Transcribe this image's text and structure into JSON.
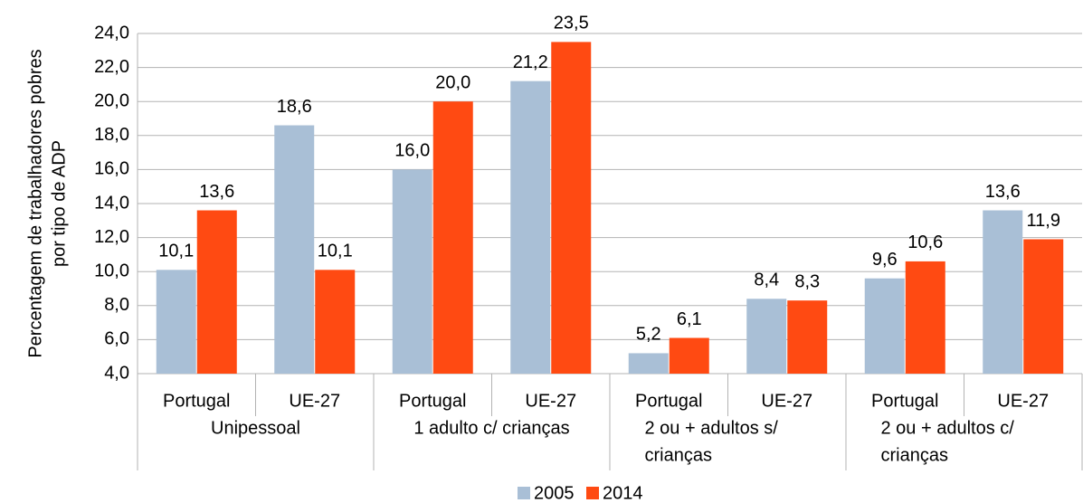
{
  "chart_data": {
    "type": "bar",
    "ylabel": [
      "Percentagem de trabalhadores pobres",
      "por tipo de ADP"
    ],
    "categories": [
      "Portugal",
      "UE-27",
      "Portugal",
      "UE-27",
      "Portugal",
      "UE-27",
      "Portugal",
      "UE-27"
    ],
    "groups": [
      [
        "Unipessoal"
      ],
      [
        "1 adulto c/ crianças"
      ],
      [
        "2 ou + adultos s/",
        "crianças"
      ],
      [
        "2 ou + adultos c/",
        "crianças"
      ]
    ],
    "series": [
      {
        "name": "2005",
        "color": "#a9bfd6",
        "values": [
          10.1,
          18.6,
          16.0,
          21.2,
          5.2,
          8.4,
          9.6,
          13.6
        ],
        "value_labels": [
          "10,1",
          "18,6",
          "16,0",
          "21,2",
          "5,2",
          "8,4",
          "9,6",
          "13,6"
        ]
      },
      {
        "name": "2014",
        "color": "#ff4a12",
        "values": [
          13.6,
          10.1,
          20.0,
          23.5,
          6.1,
          8.3,
          10.6,
          11.9
        ],
        "value_labels": [
          "13,6",
          "10,1",
          "20,0",
          "23,5",
          "6,1",
          "8,3",
          "10,6",
          "11,9"
        ]
      }
    ],
    "ylim": [
      4,
      24
    ],
    "yticks": [
      {
        "value": 4,
        "label": "4,0"
      },
      {
        "value": 6,
        "label": "6,0"
      },
      {
        "value": 8,
        "label": "8,0"
      },
      {
        "value": 10,
        "label": "10,0"
      },
      {
        "value": 12,
        "label": "12,0"
      },
      {
        "value": 14,
        "label": "14,0"
      },
      {
        "value": 16,
        "label": "16,0"
      },
      {
        "value": 18,
        "label": "18,0"
      },
      {
        "value": 20,
        "label": "20,0"
      },
      {
        "value": 22,
        "label": "22,0"
      },
      {
        "value": 24,
        "label": "24,0"
      }
    ],
    "grid": true,
    "legend": "bottom"
  }
}
